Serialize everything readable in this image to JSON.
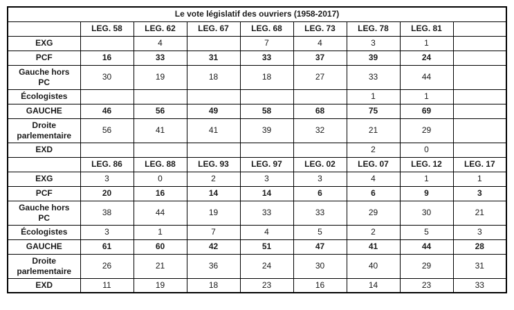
{
  "title": "Le vote législatif des ouvriers (1958-2017)",
  "colors": {
    "background": "#ffffff",
    "border": "#000000",
    "text": "#1a1a1a"
  },
  "chart_data": {
    "type": "table",
    "title": "Le vote législatif des ouvriers (1958-2017)",
    "blocks": [
      {
        "columns": [
          "",
          "LEG. 58",
          "LEG. 62",
          "LEG. 67",
          "LEG. 68",
          "LEG. 73",
          "LEG. 78",
          "LEG. 81",
          ""
        ],
        "rows": [
          {
            "label": "EXG",
            "bold": false,
            "values": [
              "",
              "4",
              "",
              "7",
              "4",
              "3",
              "1",
              ""
            ]
          },
          {
            "label": "PCF",
            "bold": true,
            "values": [
              "16",
              "33",
              "31",
              "33",
              "37",
              "39",
              "24",
              ""
            ]
          },
          {
            "label": "Gauche hors PC",
            "bold": false,
            "values": [
              "30",
              "19",
              "18",
              "18",
              "27",
              "33",
              "44",
              ""
            ]
          },
          {
            "label": "Écologistes",
            "bold": false,
            "values": [
              "",
              "",
              "",
              "",
              "",
              "1",
              "1",
              ""
            ]
          },
          {
            "label": "GAUCHE",
            "bold": true,
            "values": [
              "46",
              "56",
              "49",
              "58",
              "68",
              "75",
              "69",
              ""
            ]
          },
          {
            "label": "Droite parlementaire",
            "bold": false,
            "values": [
              "56",
              "41",
              "41",
              "39",
              "32",
              "21",
              "29",
              ""
            ]
          },
          {
            "label": "EXD",
            "bold": false,
            "values": [
              "",
              "",
              "",
              "",
              "",
              "2",
              "0",
              ""
            ]
          }
        ]
      },
      {
        "columns": [
          "",
          "LEG. 86",
          "LEG. 88",
          "LEG. 93",
          "LEG. 97",
          "LEG. 02",
          "LEG. 07",
          "LEG. 12",
          "LEG. 17"
        ],
        "rows": [
          {
            "label": "EXG",
            "bold": false,
            "values": [
              "3",
              "0",
              "2",
              "3",
              "3",
              "4",
              "1",
              "1"
            ]
          },
          {
            "label": "PCF",
            "bold": true,
            "values": [
              "20",
              "16",
              "14",
              "14",
              "6",
              "6",
              "9",
              "3"
            ]
          },
          {
            "label": "Gauche hors PC",
            "bold": false,
            "values": [
              "38",
              "44",
              "19",
              "33",
              "33",
              "29",
              "30",
              "21"
            ]
          },
          {
            "label": "Écologistes",
            "bold": false,
            "values": [
              "3",
              "1",
              "7",
              "4",
              "5",
              "2",
              "5",
              "3"
            ]
          },
          {
            "label": "GAUCHE",
            "bold": true,
            "values": [
              "61",
              "60",
              "42",
              "51",
              "47",
              "41",
              "44",
              "28"
            ]
          },
          {
            "label": "Droite parlementaire",
            "bold": false,
            "values": [
              "26",
              "21",
              "36",
              "24",
              "30",
              "40",
              "29",
              "31"
            ]
          },
          {
            "label": "EXD",
            "bold": false,
            "values": [
              "11",
              "19",
              "18",
              "23",
              "16",
              "14",
              "23",
              "33"
            ]
          }
        ]
      }
    ]
  }
}
